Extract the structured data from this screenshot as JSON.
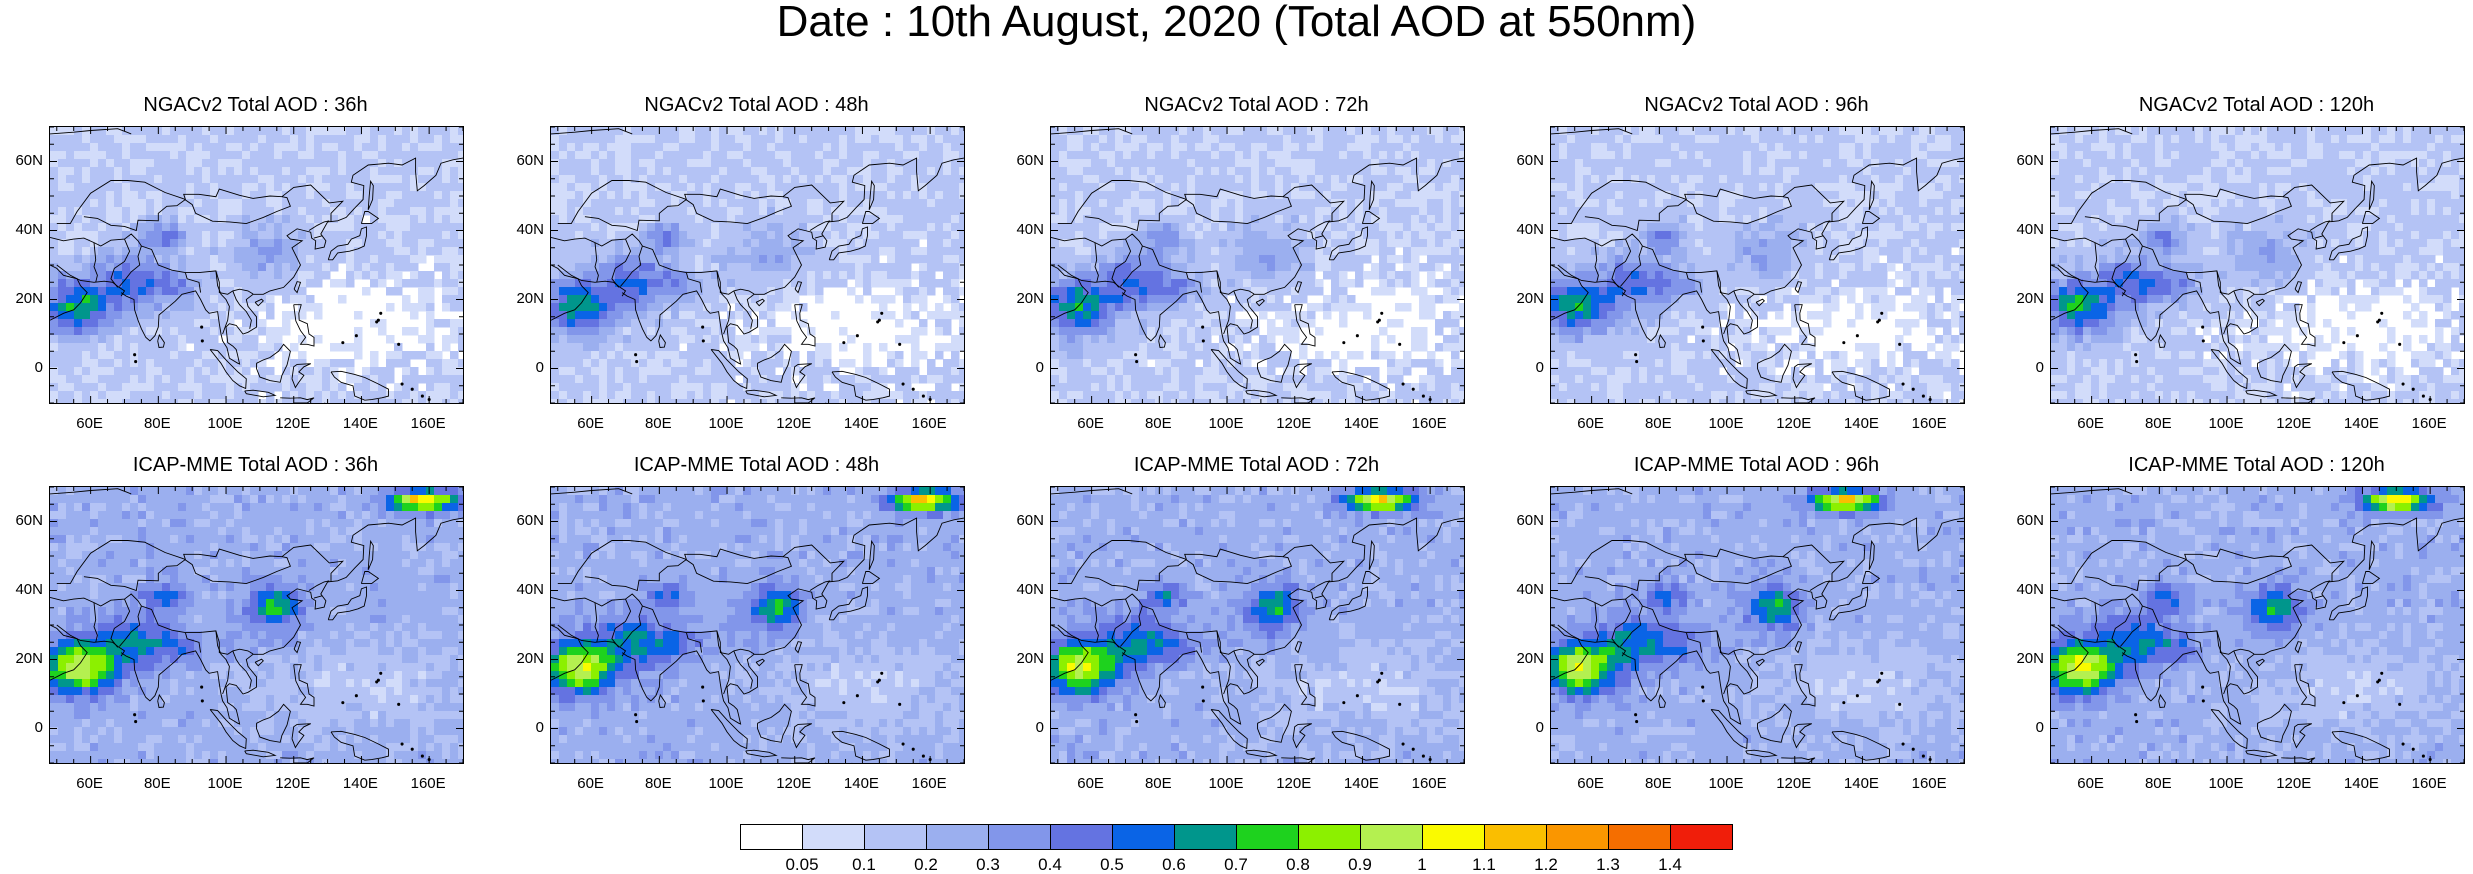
{
  "title": "Date : 10th August, 2020 (Total AOD at 550nm)",
  "panels": [
    {
      "title": "NGACv2 Total AOD : 36h",
      "model": "NGACv2"
    },
    {
      "title": "NGACv2 Total AOD : 48h",
      "model": "NGACv2"
    },
    {
      "title": "NGACv2 Total AOD : 72h",
      "model": "NGACv2"
    },
    {
      "title": "NGACv2 Total AOD : 96h",
      "model": "NGACv2"
    },
    {
      "title": "NGACv2 Total AOD : 120h",
      "model": "NGACv2"
    },
    {
      "title": "ICAP-MME Total AOD : 36h",
      "model": "ICAP-MME"
    },
    {
      "title": "ICAP-MME Total AOD : 48h",
      "model": "ICAP-MME"
    },
    {
      "title": "ICAP-MME Total AOD : 72h",
      "model": "ICAP-MME"
    },
    {
      "title": "ICAP-MME Total AOD : 96h",
      "model": "ICAP-MME"
    },
    {
      "title": "ICAP-MME Total AOD : 120h",
      "model": "ICAP-MME"
    }
  ],
  "lat_ticks": [
    "60N",
    "40N",
    "20N",
    "0"
  ],
  "lat_values": [
    60,
    40,
    20,
    0
  ],
  "lat_range": [
    -10,
    70
  ],
  "lon_ticks": [
    "60E",
    "80E",
    "100E",
    "120E",
    "140E",
    "160E"
  ],
  "lon_values": [
    60,
    80,
    100,
    120,
    140,
    160
  ],
  "lon_range": [
    48,
    170
  ],
  "colorbar": {
    "labels": [
      "0.05",
      "0.1",
      "0.2",
      "0.3",
      "0.4",
      "0.5",
      "0.6",
      "0.7",
      "0.8",
      "0.9",
      "1",
      "1.1",
      "1.2",
      "1.3",
      "1.4"
    ],
    "colors": [
      "#ffffff",
      "#d2dcfa",
      "#b4c3f5",
      "#9bafef",
      "#8296ea",
      "#6473e1",
      "#0a64e6",
      "#00968c",
      "#1ed21e",
      "#8cf000",
      "#b4f050",
      "#fafa00",
      "#fabe00",
      "#fa9600",
      "#f56e00",
      "#f01e0a"
    ]
  }
}
